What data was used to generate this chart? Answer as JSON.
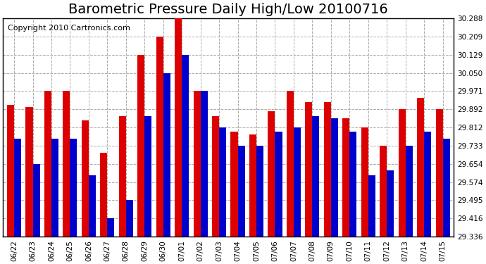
{
  "title": "Barometric Pressure Daily High/Low 20100716",
  "copyright": "Copyright 2010 Cartronics.com",
  "dates": [
    "06/22",
    "06/23",
    "06/24",
    "06/25",
    "06/26",
    "06/27",
    "06/28",
    "06/29",
    "06/30",
    "07/01",
    "07/02",
    "07/03",
    "07/04",
    "07/05",
    "07/06",
    "07/07",
    "07/08",
    "07/09",
    "07/10",
    "07/11",
    "07/12",
    "07/13",
    "07/14",
    "07/15"
  ],
  "highs": [
    29.912,
    29.902,
    29.971,
    29.971,
    29.843,
    29.703,
    29.862,
    30.129,
    30.209,
    30.288,
    29.971,
    29.862,
    29.793,
    29.783,
    29.882,
    29.971,
    29.922,
    29.922,
    29.852,
    29.812,
    29.733,
    29.892,
    29.941,
    29.892
  ],
  "lows": [
    29.763,
    29.654,
    29.763,
    29.763,
    29.604,
    29.416,
    29.495,
    29.862,
    30.05,
    30.129,
    29.971,
    29.812,
    29.733,
    29.733,
    29.793,
    29.812,
    29.862,
    29.852,
    29.793,
    29.604,
    29.624,
    29.733,
    29.793,
    29.763
  ],
  "bar_color_high": "#dd0000",
  "bar_color_low": "#0000cc",
  "background_color": "#ffffff",
  "plot_background": "#ffffff",
  "grid_color": "#aaaaaa",
  "yticks": [
    29.336,
    29.416,
    29.495,
    29.574,
    29.654,
    29.733,
    29.812,
    29.892,
    29.971,
    30.05,
    30.129,
    30.209,
    30.288
  ],
  "ymin": 29.336,
  "ymax": 30.288,
  "title_fontsize": 14,
  "copyright_fontsize": 8,
  "tick_fontsize": 7.5,
  "bar_width": 0.38
}
